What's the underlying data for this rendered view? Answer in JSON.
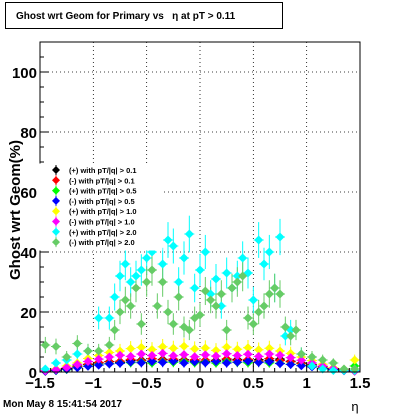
{
  "title": "Ghost wrt Geom for Primary vs   η at pT > 0.11",
  "footer_timestamp": "Mon May  8 15:41:54 2017",
  "chart_data": {
    "type": "scatter",
    "xlabel": "η",
    "ylabel": "Ghost wrt Geom(%)",
    "xlim": [
      -1.5,
      1.5
    ],
    "ylim": [
      0,
      110
    ],
    "x_ticks": [
      -1.5,
      -1,
      -0.5,
      0,
      0.5,
      1,
      1.5
    ],
    "x_tick_labels": [
      "−1.5",
      "−1",
      "−0.5",
      "0",
      "0.5",
      "1",
      "1.5"
    ],
    "y_ticks": [
      0,
      20,
      40,
      60,
      80,
      100
    ],
    "grid": true,
    "legend_position": "left-middle",
    "series": [
      {
        "name": "(+) with pT/|q| > 0.1",
        "color": "#000000",
        "x": [
          -1.45,
          -1.35,
          -1.25,
          -1.15,
          -1.05,
          -0.95,
          -0.85,
          -0.75,
          -0.65,
          -0.55,
          -0.45,
          -0.35,
          -0.25,
          -0.15,
          -0.05,
          0.05,
          0.15,
          0.25,
          0.35,
          0.45,
          0.55,
          0.65,
          0.75,
          0.85,
          0.95,
          1.05,
          1.15,
          1.25,
          1.35,
          1.45
        ],
        "y": [
          0.3,
          0.5,
          1.2,
          2.0,
          2.5,
          3.0,
          3.5,
          3.2,
          3.8,
          4.0,
          3.6,
          4.2,
          3.9,
          4.1,
          3.7,
          3.5,
          3.9,
          4.0,
          4.2,
          3.8,
          4.1,
          3.9,
          4.3,
          3.6,
          3.0,
          2.4,
          1.8,
          1.0,
          0.6,
          0.4
        ]
      },
      {
        "name": "(-) with pT/|q| > 0.1",
        "color": "#ff0000",
        "x": [
          -1.45,
          -1.35,
          -1.25,
          -1.15,
          -1.05,
          -0.95,
          -0.85,
          -0.75,
          -0.65,
          -0.55,
          -0.45,
          -0.35,
          -0.25,
          -0.15,
          -0.05,
          0.05,
          0.15,
          0.25,
          0.35,
          0.45,
          0.55,
          0.65,
          0.75,
          0.85,
          0.95,
          1.05,
          1.15,
          1.25,
          1.35,
          1.45
        ],
        "y": [
          0.2,
          0.6,
          1.0,
          1.8,
          2.6,
          3.2,
          3.4,
          3.6,
          4.2,
          3.8,
          4.4,
          4.0,
          4.3,
          3.9,
          4.1,
          4.0,
          3.7,
          4.4,
          3.9,
          4.2,
          3.6,
          4.5,
          3.8,
          3.4,
          2.8,
          2.2,
          1.6,
          1.1,
          0.5,
          0.3
        ]
      },
      {
        "name": "(+) with pT/|q| > 0.5",
        "color": "#00ff00",
        "x": [
          -1.45,
          -1.35,
          -1.25,
          -1.15,
          -1.05,
          -0.95,
          -0.85,
          -0.75,
          -0.65,
          -0.55,
          -0.45,
          -0.35,
          -0.25,
          -0.15,
          -0.05,
          0.05,
          0.15,
          0.25,
          0.35,
          0.45,
          0.55,
          0.65,
          0.75,
          0.85,
          0.95,
          1.05,
          1.15,
          1.25,
          1.35,
          1.45
        ],
        "y": [
          0.3,
          0.4,
          0.8,
          1.5,
          2.0,
          2.4,
          2.8,
          3.0,
          3.1,
          3.3,
          3.0,
          3.4,
          3.2,
          3.5,
          3.1,
          3.3,
          3.0,
          3.4,
          3.2,
          3.1,
          3.3,
          3.0,
          2.9,
          2.6,
          2.2,
          1.8,
          1.3,
          0.9,
          0.5,
          2.0
        ]
      },
      {
        "name": "(-) with pT/|q| > 0.5",
        "color": "#0000ff",
        "x": [
          -1.45,
          -1.35,
          -1.25,
          -1.15,
          -1.05,
          -0.95,
          -0.85,
          -0.75,
          -0.65,
          -0.55,
          -0.45,
          -0.35,
          -0.25,
          -0.15,
          -0.05,
          0.05,
          0.15,
          0.25,
          0.35,
          0.45,
          0.55,
          0.65,
          0.75,
          0.85,
          0.95,
          1.05,
          1.15,
          1.25,
          1.35,
          1.45
        ],
        "y": [
          0.2,
          0.5,
          0.9,
          1.4,
          1.9,
          2.3,
          2.7,
          2.9,
          3.3,
          3.1,
          3.5,
          3.2,
          3.6,
          3.0,
          3.4,
          3.1,
          3.5,
          3.0,
          3.3,
          3.6,
          3.2,
          3.4,
          2.8,
          2.5,
          2.1,
          1.7,
          1.2,
          0.8,
          0.4,
          0.3
        ]
      },
      {
        "name": "(+) with pT/|q| > 1.0",
        "color": "#ffff00",
        "x": [
          -1.45,
          -1.35,
          -1.25,
          -1.15,
          -1.05,
          -0.95,
          -0.85,
          -0.75,
          -0.65,
          -0.55,
          -0.45,
          -0.35,
          -0.25,
          -0.15,
          -0.05,
          0.05,
          0.15,
          0.25,
          0.35,
          0.45,
          0.55,
          0.65,
          0.75,
          0.85,
          0.95,
          1.05,
          1.15,
          1.25,
          1.35,
          1.45
        ],
        "y": [
          0.5,
          1.0,
          2.0,
          3.0,
          4.5,
          5.5,
          6.5,
          7.0,
          7.8,
          8.2,
          7.5,
          8.4,
          7.9,
          8.6,
          7.7,
          8.0,
          7.2,
          8.3,
          7.6,
          8.1,
          7.4,
          7.9,
          7.0,
          6.2,
          5.0,
          3.8,
          2.6,
          1.5,
          0.9,
          4.0
        ]
      },
      {
        "name": "(-) with pT/|q| > 1.0",
        "color": "#ff00ff",
        "x": [
          -1.45,
          -1.35,
          -1.25,
          -1.15,
          -1.05,
          -0.95,
          -0.85,
          -0.75,
          -0.65,
          -0.55,
          -0.45,
          -0.35,
          -0.25,
          -0.15,
          -0.05,
          0.05,
          0.15,
          0.25,
          0.35,
          0.45,
          0.55,
          0.65,
          0.75,
          0.85,
          0.95,
          1.05,
          1.15,
          1.25,
          1.35,
          1.45
        ],
        "y": [
          0.4,
          0.8,
          1.5,
          2.5,
          3.5,
          4.3,
          5.0,
          5.6,
          5.2,
          6.0,
          5.5,
          6.2,
          5.4,
          5.8,
          5.1,
          5.7,
          5.3,
          6.1,
          5.5,
          5.9,
          5.2,
          6.0,
          5.6,
          4.8,
          3.9,
          3.0,
          2.0,
          1.2,
          0.6,
          0.3
        ]
      },
      {
        "name": "(+) with pT/|q| > 2.0",
        "color": "#00ffff",
        "x": [
          -1.45,
          -1.35,
          -1.25,
          -1.15,
          -1.05,
          -0.95,
          -0.85,
          -0.8,
          -0.75,
          -0.7,
          -0.65,
          -0.6,
          -0.55,
          -0.5,
          -0.45,
          -0.4,
          -0.35,
          -0.3,
          -0.25,
          -0.2,
          -0.15,
          -0.1,
          -0.05,
          0.0,
          0.05,
          0.1,
          0.15,
          0.2,
          0.25,
          0.3,
          0.35,
          0.4,
          0.45,
          0.5,
          0.55,
          0.6,
          0.65,
          0.7,
          0.75,
          0.8,
          0.85,
          0.95,
          1.05,
          1.15,
          1.25,
          1.35,
          1.45
        ],
        "y": [
          1.0,
          3.0,
          4.0,
          6.0,
          7.0,
          18.0,
          18.0,
          25.0,
          32.0,
          36.0,
          30.0,
          32.0,
          34.0,
          38.0,
          40.0,
          52.0,
          36.0,
          44.0,
          42.0,
          30.0,
          38.0,
          46.0,
          28.0,
          34.0,
          40.0,
          26.0,
          31.0,
          22.0,
          33.0,
          28.0,
          32.0,
          38.0,
          33.0,
          24.0,
          44.0,
          36.0,
          40.0,
          28.0,
          45.0,
          12.0,
          14.0,
          6.0,
          2.0,
          1.0,
          0.5,
          0.5,
          0.5
        ]
      },
      {
        "name": "(-) with pT/|q| > 2.0",
        "color": "#66cc66",
        "x": [
          -1.45,
          -1.35,
          -1.25,
          -1.15,
          -1.05,
          -0.95,
          -0.85,
          -0.8,
          -0.75,
          -0.7,
          -0.65,
          -0.6,
          -0.55,
          -0.5,
          -0.45,
          -0.4,
          -0.35,
          -0.3,
          -0.25,
          -0.2,
          -0.15,
          -0.1,
          -0.05,
          0.0,
          0.05,
          0.1,
          0.15,
          0.2,
          0.25,
          0.3,
          0.35,
          0.4,
          0.45,
          0.5,
          0.55,
          0.6,
          0.65,
          0.7,
          0.75,
          0.8,
          0.85,
          0.9,
          0.95,
          1.05,
          1.15,
          1.25,
          1.35,
          1.45
        ],
        "y": [
          9.0,
          8.5,
          5.0,
          9.5,
          7.0,
          7.0,
          9.0,
          14.0,
          20.0,
          24.0,
          22.0,
          28.0,
          16.0,
          30.0,
          34.0,
          22.0,
          30.0,
          20.0,
          16.0,
          25.0,
          15.0,
          14.0,
          18.0,
          19.0,
          27.0,
          24.0,
          22.0,
          26.0,
          14.0,
          28.0,
          30.0,
          32.0,
          18.0,
          16.0,
          20.0,
          22.0,
          26.0,
          28.0,
          26.0,
          15.0,
          12.0,
          14.0,
          6.0,
          5.0,
          4.0,
          3.0,
          1.0,
          1.0
        ]
      }
    ]
  }
}
